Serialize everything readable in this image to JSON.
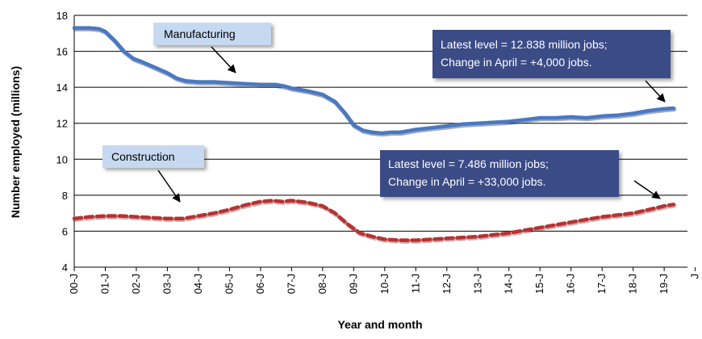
{
  "chart_data": {
    "type": "line",
    "xlabel": "Year and month",
    "ylabel": "Number employed (millions)",
    "ylim": [
      4,
      18
    ],
    "yticks": [
      4,
      6,
      8,
      10,
      12,
      14,
      16,
      18
    ],
    "xlim": [
      2000.0,
      2019.75
    ],
    "xtick_labels": [
      "00-J",
      "01-J",
      "02-J",
      "03-J",
      "04-J",
      "05-J",
      "06-J",
      "07-J",
      "08-J",
      "09-J",
      "10-J",
      "11-J",
      "12-J",
      "13-J",
      "14-J",
      "15-J",
      "16-J",
      "17-J",
      "18-J",
      "19-J"
    ],
    "extra_tick_label": "J",
    "grid": "horizontal",
    "series": [
      {
        "name": "Manufacturing",
        "color": "#4a78c2",
        "style": "solid",
        "x": [
          2000.0,
          2000.5,
          2000.8,
          2001.0,
          2001.3,
          2001.6,
          2001.9,
          2002.2,
          2002.6,
          2003.0,
          2003.3,
          2003.6,
          2004.0,
          2004.5,
          2005.0,
          2005.5,
          2006.0,
          2006.5,
          2006.8,
          2007.0,
          2007.5,
          2008.0,
          2008.4,
          2008.7,
          2009.0,
          2009.3,
          2009.6,
          2009.9,
          2010.2,
          2010.5,
          2011.0,
          2011.5,
          2012.0,
          2012.5,
          2013.0,
          2013.5,
          2014.0,
          2014.5,
          2015.0,
          2015.5,
          2016.0,
          2016.5,
          2017.0,
          2017.5,
          2018.0,
          2018.5,
          2019.0,
          2019.3
        ],
        "values": [
          17.3,
          17.3,
          17.25,
          17.1,
          16.6,
          16.0,
          15.6,
          15.4,
          15.1,
          14.8,
          14.5,
          14.35,
          14.3,
          14.3,
          14.25,
          14.2,
          14.15,
          14.15,
          14.05,
          13.95,
          13.8,
          13.6,
          13.2,
          12.6,
          11.9,
          11.6,
          11.5,
          11.45,
          11.5,
          11.5,
          11.65,
          11.75,
          11.85,
          11.95,
          12.0,
          12.05,
          12.1,
          12.2,
          12.3,
          12.3,
          12.35,
          12.3,
          12.4,
          12.45,
          12.55,
          12.7,
          12.8,
          12.838
        ]
      },
      {
        "name": "Construction",
        "color": "#b83232",
        "style": "dashed",
        "x": [
          2000.0,
          2000.5,
          2001.0,
          2001.5,
          2002.0,
          2002.5,
          2003.0,
          2003.5,
          2004.0,
          2004.5,
          2005.0,
          2005.5,
          2006.0,
          2006.4,
          2006.7,
          2007.0,
          2007.5,
          2008.0,
          2008.4,
          2008.8,
          2009.2,
          2009.6,
          2010.0,
          2010.5,
          2011.0,
          2011.5,
          2012.0,
          2012.5,
          2013.0,
          2013.5,
          2014.0,
          2014.5,
          2015.0,
          2015.5,
          2016.0,
          2016.5,
          2017.0,
          2017.5,
          2018.0,
          2018.5,
          2019.0,
          2019.3
        ],
        "values": [
          6.7,
          6.8,
          6.85,
          6.85,
          6.8,
          6.75,
          6.7,
          6.7,
          6.85,
          7.0,
          7.2,
          7.45,
          7.65,
          7.7,
          7.65,
          7.7,
          7.6,
          7.4,
          7.0,
          6.4,
          5.9,
          5.7,
          5.55,
          5.5,
          5.5,
          5.55,
          5.6,
          5.65,
          5.7,
          5.8,
          5.9,
          6.05,
          6.2,
          6.35,
          6.5,
          6.65,
          6.8,
          6.9,
          7.0,
          7.2,
          7.4,
          7.486
        ]
      }
    ],
    "series_labels": {
      "manufacturing": "Manufacturing",
      "construction": "Construction"
    },
    "annotations": {
      "manufacturing_line1": "Latest level = 12.838 million jobs;",
      "manufacturing_line2": "Change in April = +4,000 jobs.",
      "construction_line1": "Latest level = 7.486 million jobs;",
      "construction_line2": "Change in April = +33,000 jobs."
    },
    "colors": {
      "callout_fill": "#3a4c86",
      "label_fill": "#c6d9f1"
    }
  }
}
